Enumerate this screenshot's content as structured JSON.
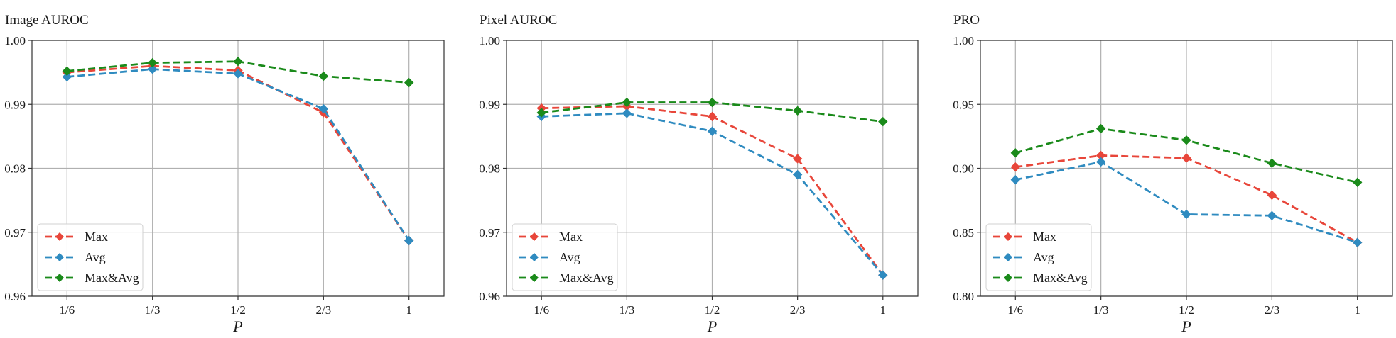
{
  "colors": {
    "max": "#e8463a",
    "avg": "#2f8bc0",
    "maxavg": "#1a8a1a",
    "grid": "#b0b0b0",
    "axis": "#333333"
  },
  "chart_data": [
    {
      "type": "line",
      "title": "Image AUROC",
      "xlabel": "P",
      "ylabel": "",
      "categories": [
        "1/6",
        "1/3",
        "1/2",
        "2/3",
        "1"
      ],
      "ylim": [
        0.96,
        1.0
      ],
      "yticks": [
        "0.96",
        "0.97",
        "0.98",
        "0.99",
        "1.00"
      ],
      "grid": true,
      "legend_position": "lower-left",
      "series": [
        {
          "name": "Max",
          "color": "#e8463a",
          "values": [
            0.995,
            0.996,
            0.9953,
            0.9887,
            0.9687
          ]
        },
        {
          "name": "Avg",
          "color": "#2f8bc0",
          "values": [
            0.9943,
            0.9955,
            0.9948,
            0.9893,
            0.9687
          ]
        },
        {
          "name": "Max&Avg",
          "color": "#1a8a1a",
          "values": [
            0.9952,
            0.9965,
            0.9967,
            0.9944,
            0.9934
          ]
        }
      ]
    },
    {
      "type": "line",
      "title": "Pixel AUROC",
      "xlabel": "P",
      "ylabel": "",
      "categories": [
        "1/6",
        "1/3",
        "1/2",
        "2/3",
        "1"
      ],
      "ylim": [
        0.96,
        1.0
      ],
      "yticks": [
        "0.96",
        "0.97",
        "0.98",
        "0.99",
        "1.00"
      ],
      "grid": true,
      "legend_position": "lower-left",
      "series": [
        {
          "name": "Max",
          "color": "#e8463a",
          "values": [
            0.9894,
            0.9897,
            0.9881,
            0.9815,
            0.9633
          ]
        },
        {
          "name": "Avg",
          "color": "#2f8bc0",
          "values": [
            0.9881,
            0.9886,
            0.9858,
            0.979,
            0.9633
          ]
        },
        {
          "name": "Max&Avg",
          "color": "#1a8a1a",
          "values": [
            0.9887,
            0.9903,
            0.9903,
            0.989,
            0.9873
          ]
        }
      ]
    },
    {
      "type": "line",
      "title": "PRO",
      "xlabel": "P",
      "ylabel": "",
      "categories": [
        "1/6",
        "1/3",
        "1/2",
        "2/3",
        "1"
      ],
      "ylim": [
        0.8,
        1.0
      ],
      "yticks": [
        "0.80",
        "0.85",
        "0.90",
        "0.95",
        "1.00"
      ],
      "grid": true,
      "legend_position": "lower-left",
      "series": [
        {
          "name": "Max",
          "color": "#e8463a",
          "values": [
            0.901,
            0.91,
            0.908,
            0.879,
            0.842
          ]
        },
        {
          "name": "Avg",
          "color": "#2f8bc0",
          "values": [
            0.891,
            0.905,
            0.864,
            0.863,
            0.842
          ]
        },
        {
          "name": "Max&Avg",
          "color": "#1a8a1a",
          "values": [
            0.912,
            0.931,
            0.922,
            0.904,
            0.889
          ]
        }
      ]
    }
  ]
}
